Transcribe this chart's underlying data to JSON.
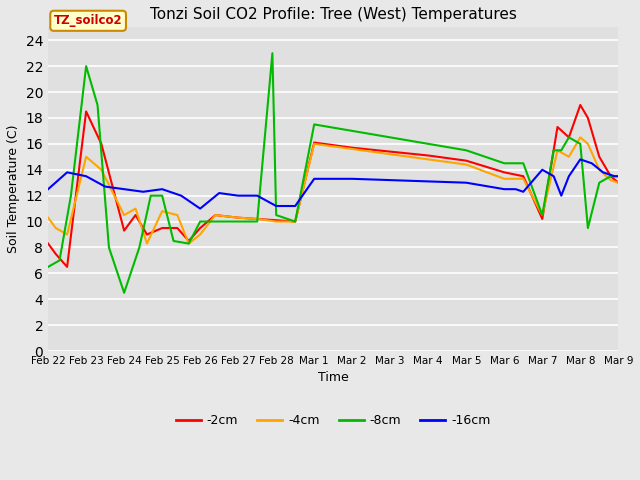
{
  "title": "Tonzi Soil CO2 Profile: Tree (West) Temperatures",
  "xlabel": "Time",
  "ylabel": "Soil Temperature (C)",
  "ylim": [
    0,
    25
  ],
  "yticks": [
    0,
    2,
    4,
    6,
    8,
    10,
    12,
    14,
    16,
    18,
    20,
    22,
    24
  ],
  "legend_label": "TZ_soilco2",
  "series_labels": [
    "-2cm",
    "-4cm",
    "-8cm",
    "-16cm"
  ],
  "series_colors": [
    "#ff0000",
    "#ffa500",
    "#00bb00",
    "#0000ff"
  ],
  "background_color": "#e0e0e0",
  "fig_facecolor": "#e8e8e8",
  "x_2cm": [
    0.0,
    0.2,
    0.5,
    1.0,
    1.4,
    2.0,
    2.3,
    2.6,
    3.0,
    3.4,
    3.7,
    4.0,
    4.4,
    5.0,
    5.5,
    6.0,
    6.5,
    7.0,
    8.0,
    9.0,
    10.0,
    11.0,
    12.0,
    12.5,
    13.0,
    13.4,
    13.7,
    14.0,
    14.2,
    14.5,
    14.8,
    15.0
  ],
  "y_2cm": [
    8.3,
    7.5,
    6.5,
    18.5,
    16.0,
    9.3,
    10.5,
    9.0,
    9.5,
    9.5,
    8.5,
    9.5,
    10.5,
    10.3,
    10.2,
    10.1,
    10.0,
    16.1,
    15.7,
    15.4,
    15.1,
    14.7,
    13.8,
    13.5,
    10.2,
    17.3,
    16.5,
    19.0,
    18.0,
    15.0,
    13.5,
    13.0
  ],
  "x_4cm": [
    0.0,
    0.2,
    0.5,
    1.0,
    1.4,
    2.0,
    2.3,
    2.6,
    3.0,
    3.4,
    3.7,
    4.0,
    4.4,
    5.0,
    5.5,
    6.0,
    6.5,
    7.0,
    8.0,
    9.0,
    10.0,
    11.0,
    12.0,
    12.5,
    13.0,
    13.4,
    13.7,
    14.0,
    14.2,
    14.5,
    14.8,
    15.0
  ],
  "y_4cm": [
    10.3,
    9.5,
    9.0,
    15.0,
    14.0,
    10.5,
    11.0,
    8.3,
    10.8,
    10.5,
    8.3,
    9.0,
    10.5,
    10.3,
    10.2,
    10.0,
    10.0,
    16.0,
    15.6,
    15.2,
    14.8,
    14.4,
    13.3,
    13.3,
    10.5,
    15.5,
    15.0,
    16.5,
    16.0,
    14.0,
    13.2,
    13.0
  ],
  "x_8cm": [
    0.0,
    0.3,
    0.6,
    1.0,
    1.3,
    1.6,
    2.0,
    2.4,
    2.7,
    3.0,
    3.3,
    3.7,
    4.0,
    4.4,
    5.0,
    5.5,
    5.9,
    6.0,
    6.5,
    7.0,
    8.0,
    9.0,
    10.0,
    11.0,
    12.0,
    12.5,
    13.0,
    13.3,
    13.5,
    13.7,
    14.0,
    14.2,
    14.5,
    14.8,
    15.0
  ],
  "y_8cm": [
    6.5,
    7.0,
    12.0,
    22.0,
    19.0,
    8.0,
    4.5,
    8.0,
    12.0,
    12.0,
    8.5,
    8.3,
    10.0,
    10.0,
    10.0,
    10.0,
    23.0,
    10.5,
    10.0,
    17.5,
    17.0,
    16.5,
    16.0,
    15.5,
    14.5,
    14.5,
    10.5,
    15.5,
    15.5,
    16.5,
    16.0,
    9.5,
    13.0,
    13.5,
    13.5
  ],
  "x_16cm": [
    0.0,
    0.5,
    1.0,
    1.5,
    2.0,
    2.5,
    3.0,
    3.5,
    4.0,
    4.5,
    5.0,
    5.5,
    6.0,
    6.5,
    7.0,
    8.0,
    9.0,
    10.0,
    11.0,
    12.0,
    12.3,
    12.5,
    13.0,
    13.3,
    13.5,
    13.7,
    14.0,
    14.3,
    14.6,
    14.9,
    15.0
  ],
  "y_16cm": [
    12.5,
    13.8,
    13.5,
    12.7,
    12.5,
    12.3,
    12.5,
    12.0,
    11.0,
    12.2,
    12.0,
    12.0,
    11.2,
    11.2,
    13.3,
    13.3,
    13.2,
    13.1,
    13.0,
    12.5,
    12.5,
    12.3,
    14.0,
    13.5,
    12.0,
    13.5,
    14.8,
    14.5,
    13.8,
    13.5,
    13.5
  ]
}
